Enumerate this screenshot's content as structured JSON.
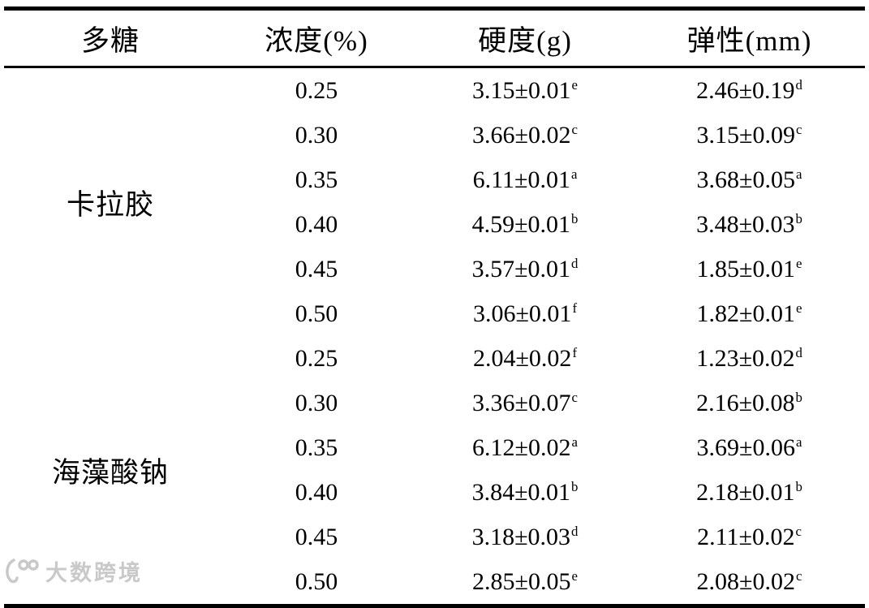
{
  "colors": {
    "text": "#000000",
    "border": "#000000",
    "background": "#ffffff",
    "watermark": "#c9c9c9"
  },
  "table": {
    "headers": [
      {
        "label": "多糖"
      },
      {
        "label": "浓度(%)"
      },
      {
        "label": "硬度(g)"
      },
      {
        "label": "弹性(mm)"
      }
    ],
    "groups": [
      {
        "name": "卡拉胶",
        "rows": [
          {
            "concentration": "0.25",
            "hardness": "3.15±0.01",
            "hardness_sup": "e",
            "elasticity": "2.46±0.19",
            "elasticity_sup": "d"
          },
          {
            "concentration": "0.30",
            "hardness": "3.66±0.02",
            "hardness_sup": "c",
            "elasticity": "3.15±0.09",
            "elasticity_sup": "c"
          },
          {
            "concentration": "0.35",
            "hardness": "6.11±0.01",
            "hardness_sup": "a",
            "elasticity": "3.68±0.05",
            "elasticity_sup": "a"
          },
          {
            "concentration": "0.40",
            "hardness": "4.59±0.01",
            "hardness_sup": "b",
            "elasticity": "3.48±0.03",
            "elasticity_sup": "b"
          },
          {
            "concentration": "0.45",
            "hardness": "3.57±0.01",
            "hardness_sup": "d",
            "elasticity": "1.85±0.01",
            "elasticity_sup": "e"
          },
          {
            "concentration": "0.50",
            "hardness": "3.06±0.01",
            "hardness_sup": "f",
            "elasticity": "1.82±0.01",
            "elasticity_sup": "e"
          }
        ]
      },
      {
        "name": "海藻酸钠",
        "rows": [
          {
            "concentration": "0.25",
            "hardness": "2.04±0.02",
            "hardness_sup": "f",
            "elasticity": "1.23±0.02",
            "elasticity_sup": "d"
          },
          {
            "concentration": "0.30",
            "hardness": "3.36±0.07",
            "hardness_sup": "c",
            "elasticity": "2.16±0.08",
            "elasticity_sup": "b"
          },
          {
            "concentration": "0.35",
            "hardness": "6.12±0.02",
            "hardness_sup": "a",
            "elasticity": "3.69±0.06",
            "elasticity_sup": "a"
          },
          {
            "concentration": "0.40",
            "hardness": "3.84±0.01",
            "hardness_sup": "b",
            "elasticity": "2.18±0.01",
            "elasticity_sup": "b"
          },
          {
            "concentration": "0.45",
            "hardness": "3.18±0.03",
            "hardness_sup": "d",
            "elasticity": "2.11±0.02",
            "elasticity_sup": "c"
          },
          {
            "concentration": "0.50",
            "hardness": "2.85±0.05",
            "hardness_sup": "e",
            "elasticity": "2.08±0.02",
            "elasticity_sup": "c"
          }
        ]
      }
    ]
  },
  "watermark": {
    "text": "大数跨境"
  }
}
